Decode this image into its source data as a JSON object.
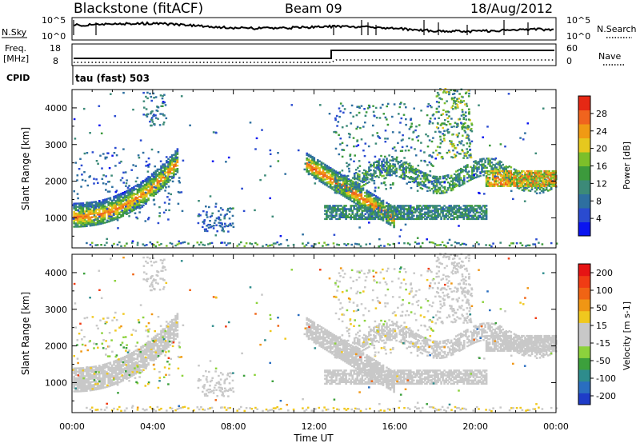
{
  "header": {
    "station": "Blackstone (fitACF)",
    "beam": "Beam 09",
    "date": "18/Aug/2012"
  },
  "top_panels": {
    "nsky_label": "N.Sky",
    "nsky_ticks": [
      "10^5",
      "10^0"
    ],
    "nsearch_label": "N.Search",
    "nsearch_ticks": [
      "10^5",
      "10^0"
    ],
    "freq_label": "Freq.",
    "freq_unit": "[MHz]",
    "freq_ticks": [
      "18",
      "8"
    ],
    "nave_label": "Nave",
    "nave_ticks": [
      "60",
      "0"
    ],
    "cpid_label": "CPID",
    "cpid_value": "tau (fast) 503"
  },
  "chart_data": [
    {
      "type": "heatmap",
      "quantity": "power",
      "ylabel": "Slant Range [km]",
      "ylim": [
        180,
        4500
      ],
      "yticks": [
        1000,
        2000,
        3000,
        4000
      ],
      "xlim": [
        0,
        24
      ],
      "colorbar": {
        "label": "Power [dB]",
        "ticks": [
          "4",
          "8",
          "12",
          "16",
          "20",
          "24",
          "28"
        ],
        "colors": [
          "#0a14f0",
          "#2a4bd0",
          "#2e6fa0",
          "#3c8a78",
          "#3c9a3c",
          "#7cbf2a",
          "#e6c81e",
          "#f09a14",
          "#f0641e",
          "#e62814"
        ]
      }
    },
    {
      "type": "heatmap",
      "quantity": "velocity",
      "ylabel": "Slant Range [km]",
      "ylim": [
        180,
        4500
      ],
      "yticks": [
        1000,
        2000,
        3000,
        4000
      ],
      "xlim": [
        0,
        24
      ],
      "xlabel": "Time UT",
      "xticks": [
        "00:00",
        "04:00",
        "08:00",
        "12:00",
        "16:00",
        "20:00",
        "00:00"
      ],
      "colorbar": {
        "label": "Velocity [m s-1]",
        "ticks": [
          "200",
          "100",
          "50",
          "15",
          "-15",
          "-50",
          "-100",
          "-200"
        ],
        "colors": [
          "#1e3cc8",
          "#2a6ec0",
          "#2e8c8c",
          "#3ca03c",
          "#8cd23c",
          "#c8c8c8",
          "#c8c8c8",
          "#f0c81e",
          "#f09614",
          "#f06414",
          "#f03c14",
          "#e61414"
        ]
      }
    }
  ],
  "colors": {
    "background": "#ffffff",
    "ground": "#c8c8c8",
    "ink": "#000000"
  }
}
